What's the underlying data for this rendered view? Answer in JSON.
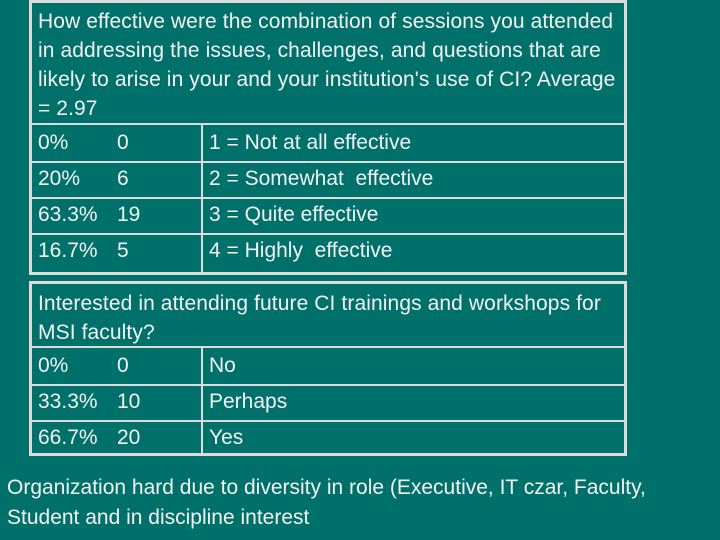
{
  "survey1": {
    "question": "How effective were the combination of sessions you attended in addressing the issues, challenges, and questions that are likely to arise in your and your institution's use of CI? Average = 2.97",
    "rows": [
      {
        "percent": "0%",
        "count": "0",
        "label": "1 = Not at all effective"
      },
      {
        "percent": "20%",
        "count": "6",
        "label": "2 = Somewhat  effective"
      },
      {
        "percent": "63.3%",
        "count": "19",
        "label": "3 = Quite effective"
      },
      {
        "percent": "16.7%",
        "count": "5",
        "label": "4 = Highly  effective"
      }
    ]
  },
  "survey2": {
    "question": "Interested in attending future CI trainings and workshops for MSI faculty?",
    "rows": [
      {
        "percent": "0%",
        "count": "0",
        "label": "No"
      },
      {
        "percent": "33.3%",
        "count": "10",
        "label": "Perhaps"
      },
      {
        "percent": "66.7%",
        "count": "20",
        "label": "Yes"
      }
    ]
  },
  "footer": {
    "text": "Organization hard due to diversity in role (Executive, IT czar, Faculty, Student and in discipline interest"
  }
}
